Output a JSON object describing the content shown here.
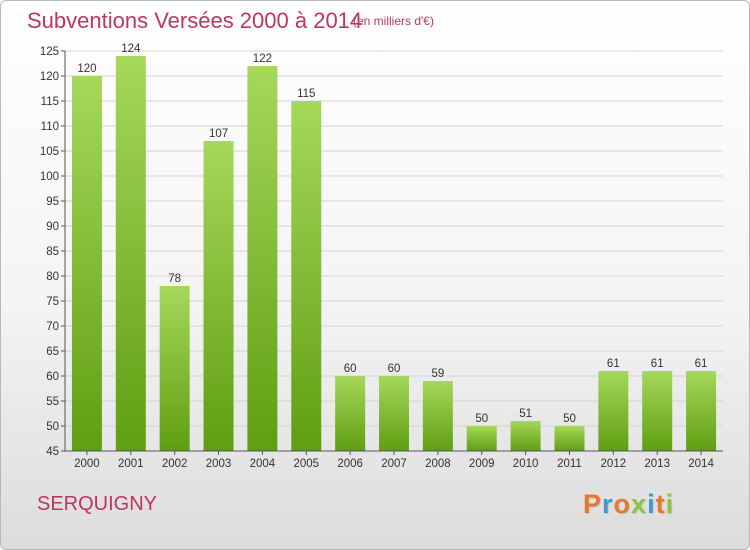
{
  "header": {
    "title": "Subventions Versées 2000 à 2014",
    "unit": "(en milliers d'€)"
  },
  "footer": {
    "commune": "SERQUIGNY",
    "logo": {
      "letters": [
        "P",
        "r",
        "o",
        "x",
        "i",
        "t",
        "i"
      ],
      "colors": [
        "#e8772e",
        "#3d9ad1",
        "#e8772e",
        "#8cc63f",
        "#3d9ad1",
        "#e8772e",
        "#8cc63f"
      ]
    }
  },
  "chart_data": {
    "type": "bar",
    "categories": [
      "2000",
      "2001",
      "2002",
      "2003",
      "2004",
      "2005",
      "2006",
      "2007",
      "2008",
      "2009",
      "2010",
      "2011",
      "2012",
      "2013",
      "2014"
    ],
    "values": [
      120,
      124,
      78,
      107,
      122,
      115,
      60,
      60,
      59,
      50,
      51,
      50,
      61,
      61,
      61
    ],
    "data_labels": [
      "120",
      "124",
      "78",
      "107",
      "122",
      "115",
      "60",
      "60",
      "59",
      "50",
      "51",
      "50",
      "61",
      "61",
      "61"
    ],
    "ylim": [
      45,
      125
    ],
    "yticks": [
      45,
      50,
      55,
      60,
      65,
      70,
      75,
      80,
      85,
      90,
      95,
      100,
      105,
      110,
      115,
      120,
      125
    ],
    "grid": true,
    "colors": {
      "bar_top": "#a6d85a",
      "bar_bottom": "#5f9e12",
      "grid": "#d4d4d4",
      "axis": "#555555"
    }
  }
}
